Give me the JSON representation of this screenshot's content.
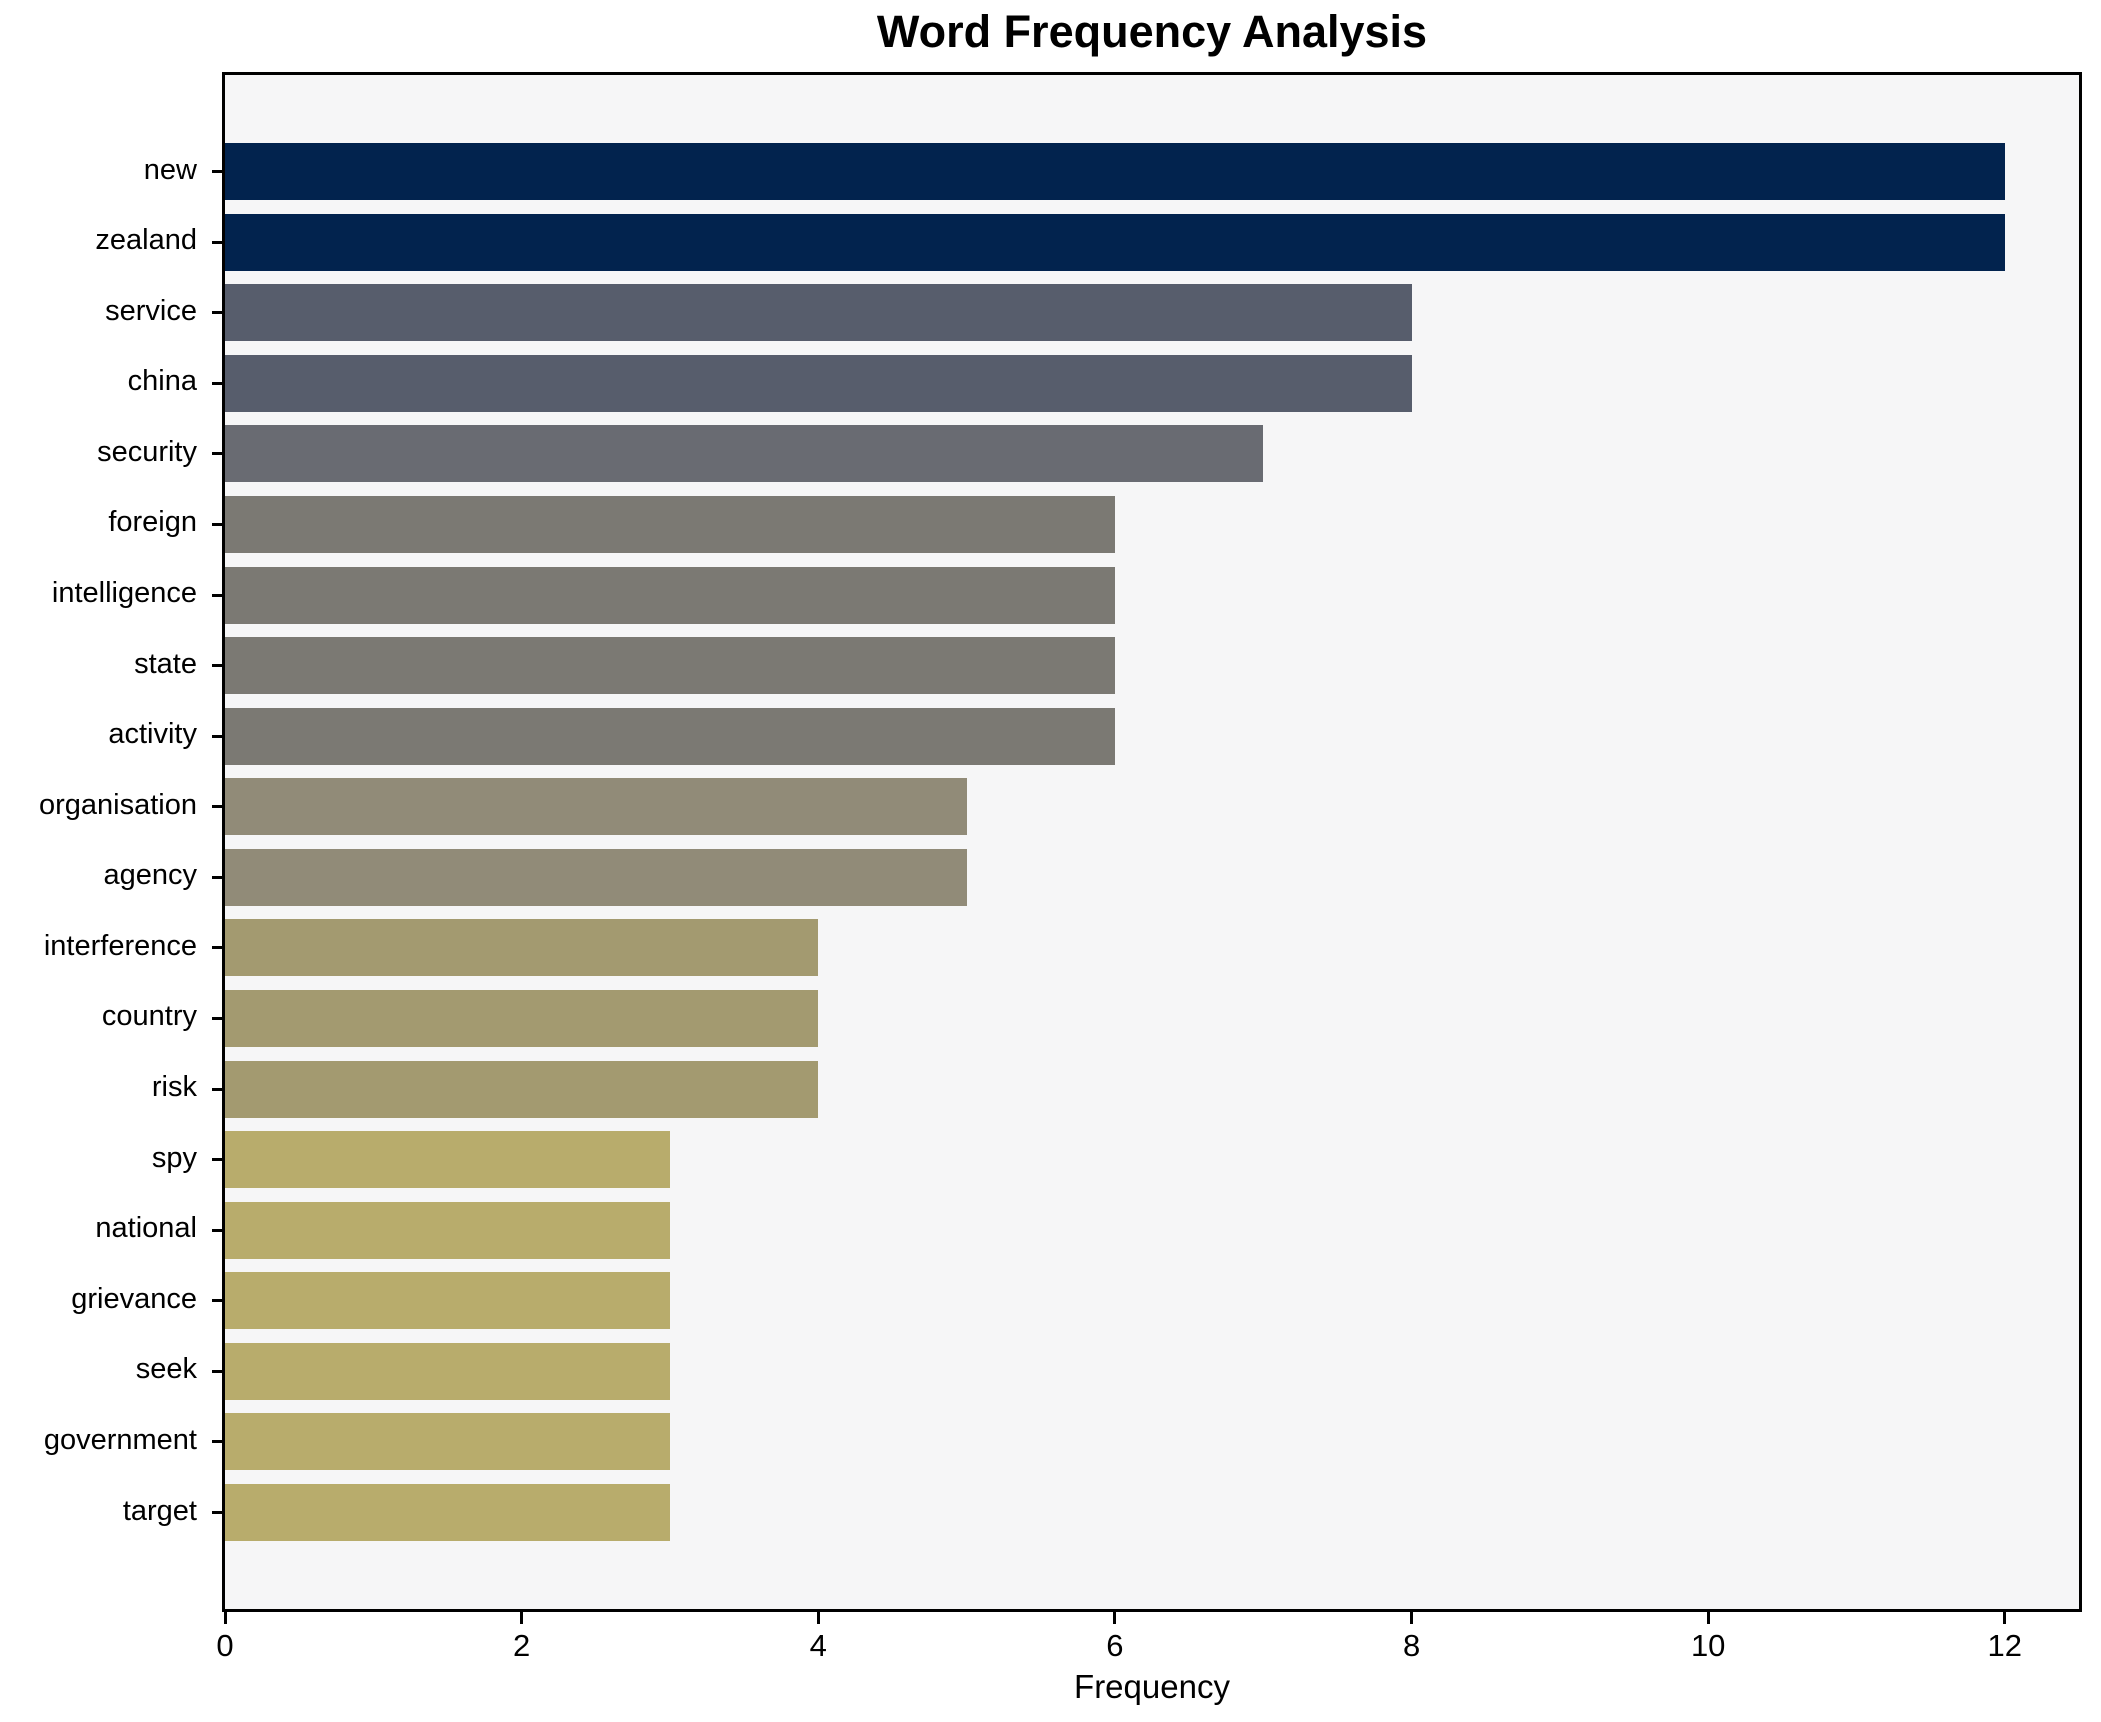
{
  "figure": {
    "background": "#ffffff",
    "plot_background": "#f6f6f7",
    "spine_color": "#000000",
    "text_color": "#000000"
  },
  "chart_data": {
    "type": "bar",
    "orientation": "horizontal",
    "title": "Word Frequency Analysis",
    "xlabel": "Frequency",
    "ylabel": "",
    "categories": [
      "new",
      "zealand",
      "service",
      "china",
      "security",
      "foreign",
      "intelligence",
      "state",
      "activity",
      "organisation",
      "agency",
      "interference",
      "country",
      "risk",
      "spy",
      "national",
      "grievance",
      "seek",
      "government",
      "target"
    ],
    "values": [
      12,
      12,
      8,
      8,
      7,
      6,
      6,
      6,
      6,
      5,
      5,
      4,
      4,
      4,
      3,
      3,
      3,
      3,
      3,
      3
    ],
    "bar_colors": [
      "#02234e",
      "#02234e",
      "#575d6c",
      "#575d6c",
      "#696b72",
      "#7b7973",
      "#7b7973",
      "#7b7973",
      "#7b7973",
      "#918b78",
      "#918b78",
      "#a39a70",
      "#a39a70",
      "#a39a70",
      "#b8ac6c",
      "#b8ac6c",
      "#b8ac6c",
      "#b8ac6c",
      "#b8ac6c",
      "#b8ac6c"
    ],
    "xticks": [
      0,
      2,
      4,
      6,
      8,
      10,
      12
    ],
    "xlim": [
      0,
      12.5
    ],
    "grid": false,
    "legend_position": "none"
  }
}
